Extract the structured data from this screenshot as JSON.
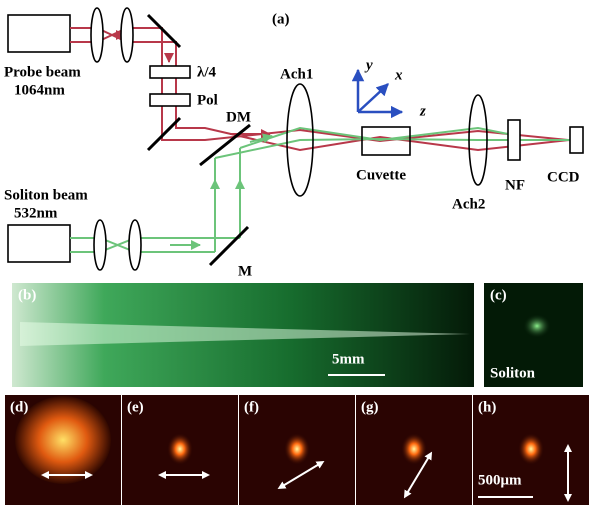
{
  "panel_a": {
    "label": "(a)",
    "probe_beam": "Probe beam",
    "probe_wavelength": "1064nm",
    "quarter_wave": "λ/4",
    "polarizer": "Pol",
    "dichroic_mirror": "DM",
    "lens1": "Ach1",
    "axis_y": "y",
    "axis_x": "x",
    "axis_z": "z",
    "cuvette": "Cuvette",
    "lens2": "Ach2",
    "filter": "NF",
    "camera": "CCD",
    "soliton_beam": "Soliton beam",
    "soliton_wavelength": "532nm",
    "mirror": "M"
  },
  "panel_b": {
    "label": "(b)",
    "scale_bar": "5mm"
  },
  "panel_c": {
    "label": "(c)",
    "caption": "Soliton"
  },
  "panels_bottom": [
    {
      "label": "(d)"
    },
    {
      "label": "(e)"
    },
    {
      "label": "(f)"
    },
    {
      "label": "(g)"
    },
    {
      "label": "(h)",
      "scale_bar": "500μm"
    }
  ]
}
